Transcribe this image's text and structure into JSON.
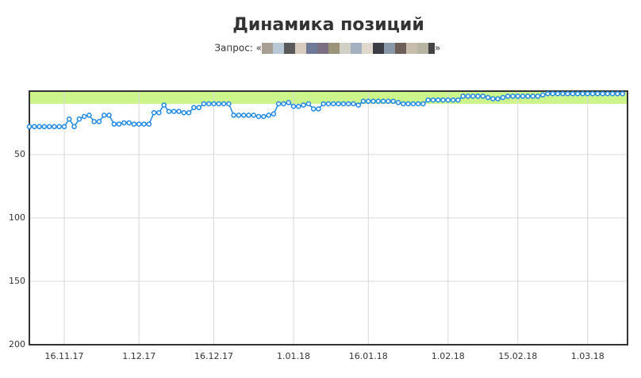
{
  "chart_data": {
    "type": "line",
    "title": "Динамика позиций",
    "subtitle": "Запрос: «",
    "subtitle_end": "»",
    "x": [
      "2017-11-09",
      "2017-11-10",
      "2017-11-11",
      "2017-11-12",
      "2017-11-13",
      "2017-11-14",
      "2017-11-15",
      "2017-11-16",
      "2017-11-17",
      "2017-11-18",
      "2017-11-19",
      "2017-11-20",
      "2017-11-21",
      "2017-11-22",
      "2017-11-23",
      "2017-11-24",
      "2017-11-25",
      "2017-11-26",
      "2017-11-27",
      "2017-11-28",
      "2017-11-29",
      "2017-11-30",
      "2017-12-01",
      "2017-12-02",
      "2017-12-03",
      "2017-12-04",
      "2017-12-05",
      "2017-12-06",
      "2017-12-07",
      "2017-12-08",
      "2017-12-09",
      "2017-12-10",
      "2017-12-11",
      "2017-12-12",
      "2017-12-13",
      "2017-12-14",
      "2017-12-15",
      "2017-12-16",
      "2017-12-17",
      "2017-12-18",
      "2017-12-19",
      "2017-12-20",
      "2017-12-21",
      "2017-12-22",
      "2017-12-23",
      "2017-12-24",
      "2017-12-25",
      "2017-12-26",
      "2017-12-27",
      "2017-12-28",
      "2017-12-29",
      "2017-12-30",
      "2017-12-31",
      "2018-01-01",
      "2018-01-02",
      "2018-01-03",
      "2018-01-04",
      "2018-01-05",
      "2018-01-06",
      "2018-01-07",
      "2018-01-08",
      "2018-01-09",
      "2018-01-10",
      "2018-01-11",
      "2018-01-12",
      "2018-01-13",
      "2018-01-14",
      "2018-01-15",
      "2018-01-16",
      "2018-01-17",
      "2018-01-18",
      "2018-01-19",
      "2018-01-20",
      "2018-01-21",
      "2018-01-22",
      "2018-01-23",
      "2018-01-24",
      "2018-01-25",
      "2018-01-26",
      "2018-01-27",
      "2018-01-28",
      "2018-01-29",
      "2018-01-30",
      "2018-01-31",
      "2018-02-01",
      "2018-02-02",
      "2018-02-03",
      "2018-02-04",
      "2018-02-05",
      "2018-02-06",
      "2018-02-07",
      "2018-02-08",
      "2018-02-09",
      "2018-02-10",
      "2018-02-11",
      "2018-02-12",
      "2018-02-13",
      "2018-02-14",
      "2018-02-15",
      "2018-02-16",
      "2018-02-17",
      "2018-02-18",
      "2018-02-19",
      "2018-02-20",
      "2018-02-21",
      "2018-02-22",
      "2018-02-23",
      "2018-02-24",
      "2018-02-25",
      "2018-02-26",
      "2018-02-27",
      "2018-02-28",
      "2018-03-01",
      "2018-03-02",
      "2018-03-03",
      "2018-03-04",
      "2018-03-05",
      "2018-03-06",
      "2018-03-07",
      "2018-03-08"
    ],
    "values": [
      28,
      28,
      28,
      28,
      28,
      28,
      28,
      28,
      22,
      28,
      22,
      20,
      19,
      24,
      24,
      19,
      19,
      26,
      26,
      25,
      25,
      26,
      26,
      26,
      26,
      17,
      17,
      11,
      16,
      16,
      16,
      17,
      17,
      13,
      13,
      10,
      10,
      10,
      10,
      10,
      10,
      19,
      19,
      19,
      19,
      19,
      20,
      20,
      19,
      18,
      10,
      10,
      9,
      12,
      12,
      11,
      10,
      14,
      14,
      10,
      10,
      10,
      10,
      10,
      10,
      10,
      11,
      8,
      8,
      8,
      8,
      8,
      8,
      8,
      9,
      10,
      10,
      10,
      10,
      10,
      7,
      7,
      7,
      7,
      7,
      7,
      7,
      4,
      4,
      4,
      4,
      4,
      5,
      6,
      6,
      5,
      4,
      4,
      4,
      4,
      4,
      4,
      4,
      3,
      2,
      2,
      2,
      2,
      2,
      2,
      2,
      2,
      2,
      2,
      2,
      2,
      2,
      2,
      2,
      2
    ],
    "color": "#1e88e5",
    "marker_fill": "#ffffff",
    "target_band": [
      0,
      10
    ],
    "band_color": "#ccf58c",
    "xlim": [
      "2017-11-09",
      "2018-03-09"
    ],
    "xticks": [
      {
        "value": "2017-11-16",
        "label": "16.11.17"
      },
      {
        "value": "2017-12-01",
        "label": "1.12.17"
      },
      {
        "value": "2017-12-16",
        "label": "16.12.17"
      },
      {
        "value": "2018-01-01",
        "label": "1.01.18"
      },
      {
        "value": "2018-01-16",
        "label": "16.01.18"
      },
      {
        "value": "2018-02-01",
        "label": "1.02.18"
      },
      {
        "value": "2018-02-15",
        "label": "15.02.18"
      },
      {
        "value": "2018-03-01",
        "label": "1.03.18"
      }
    ],
    "ylim": [
      0,
      200
    ],
    "yticks": [
      50,
      100,
      150,
      200
    ],
    "y_inverted": true,
    "grid": true
  }
}
